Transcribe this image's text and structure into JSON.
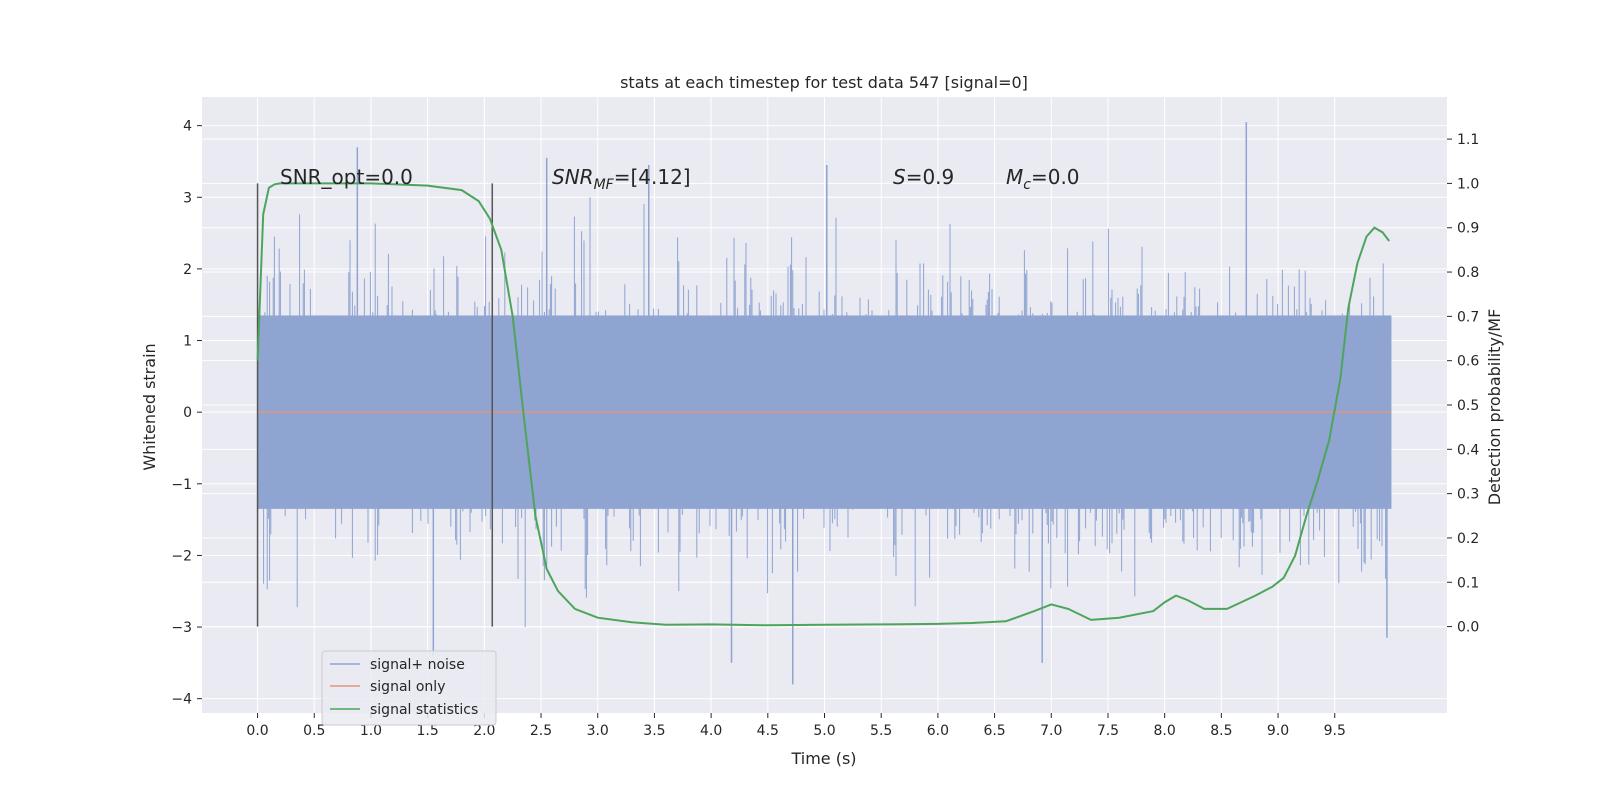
{
  "chart_data": {
    "type": "line",
    "title": "stats at each timestep for test data 547 [signal=0]",
    "xlabel": "Time (s)",
    "ylabel": "Whitened strain",
    "y2label": "Detection probability/MF",
    "xlim": [
      -0.49,
      10.49
    ],
    "ylim": [
      -4.2,
      4.4
    ],
    "y2lim": [
      -0.195,
      1.195
    ],
    "xticks": [
      "0.0",
      "0.5",
      "1.0",
      "1.5",
      "2.0",
      "2.5",
      "3.0",
      "3.5",
      "4.0",
      "4.5",
      "5.0",
      "5.5",
      "6.0",
      "6.5",
      "7.0",
      "7.5",
      "8.0",
      "8.5",
      "9.0",
      "9.5"
    ],
    "yticks": [
      "4",
      "3",
      "2",
      "1",
      "0",
      "−1",
      "−2",
      "−3",
      "−4"
    ],
    "y2ticks": [
      "1.1",
      "1.0",
      "0.9",
      "0.8",
      "0.7",
      "0.6",
      "0.5",
      "0.4",
      "0.3",
      "0.2",
      "0.1",
      "0.0"
    ],
    "annotations": {
      "snr_opt": "SNR_opt=0.0",
      "snr_mf_sym": "SNR",
      "snr_mf_sub": "MF",
      "snr_mf_rest": "=[4.12]",
      "s_sym": "S",
      "s_rest": "=0.9",
      "mc_sym": "M",
      "mc_sub": "c",
      "mc_rest": "=0.0"
    },
    "window_lines_x": [
      0.0,
      2.07
    ],
    "series": [
      {
        "name": "signal+ noise",
        "color": "#8fa4d1",
        "x_range": [
          0.0,
          10.0
        ],
        "y_range_typical": [
          -1.35,
          1.35
        ],
        "y_range_extreme": [
          -3.8,
          4.05
        ],
        "spikes": [
          [
            0.88,
            3.7
          ],
          [
            2.55,
            3.55
          ],
          [
            3.45,
            3.45
          ],
          [
            5.02,
            3.45
          ],
          [
            8.72,
            4.05
          ],
          [
            1.55,
            -3.4
          ],
          [
            4.18,
            -3.5
          ],
          [
            4.72,
            -3.8
          ],
          [
            6.92,
            -3.5
          ],
          [
            9.96,
            -3.15
          ]
        ]
      },
      {
        "name": "signal only",
        "color": "#e1967a",
        "x": [
          0.0,
          10.0
        ],
        "y": [
          0.0,
          0.0
        ]
      },
      {
        "name": "signal statistics",
        "color": "#4da55b",
        "axis": "right",
        "x": [
          0.0,
          0.05,
          0.1,
          0.15,
          0.2,
          0.3,
          0.5,
          1.0,
          1.5,
          1.8,
          1.95,
          2.05,
          2.15,
          2.25,
          2.35,
          2.45,
          2.55,
          2.65,
          2.8,
          3.0,
          3.3,
          3.6,
          4.0,
          4.5,
          5.0,
          5.5,
          6.0,
          6.3,
          6.6,
          6.85,
          7.0,
          7.15,
          7.35,
          7.6,
          7.9,
          8.0,
          8.1,
          8.2,
          8.35,
          8.55,
          8.8,
          8.95,
          9.05,
          9.15,
          9.25,
          9.35,
          9.45,
          9.55,
          9.62,
          9.7,
          9.78,
          9.85,
          9.92,
          9.98
        ],
        "y": [
          0.6,
          0.93,
          0.99,
          0.998,
          1.0,
          1.0,
          1.0,
          1.0,
          0.995,
          0.985,
          0.96,
          0.92,
          0.85,
          0.7,
          0.47,
          0.25,
          0.13,
          0.08,
          0.04,
          0.02,
          0.01,
          0.004,
          0.005,
          0.003,
          0.004,
          0.005,
          0.006,
          0.008,
          0.012,
          0.035,
          0.05,
          0.04,
          0.015,
          0.02,
          0.035,
          0.055,
          0.07,
          0.06,
          0.04,
          0.04,
          0.07,
          0.09,
          0.11,
          0.16,
          0.25,
          0.33,
          0.42,
          0.56,
          0.72,
          0.82,
          0.88,
          0.9,
          0.89,
          0.87
        ]
      }
    ]
  }
}
